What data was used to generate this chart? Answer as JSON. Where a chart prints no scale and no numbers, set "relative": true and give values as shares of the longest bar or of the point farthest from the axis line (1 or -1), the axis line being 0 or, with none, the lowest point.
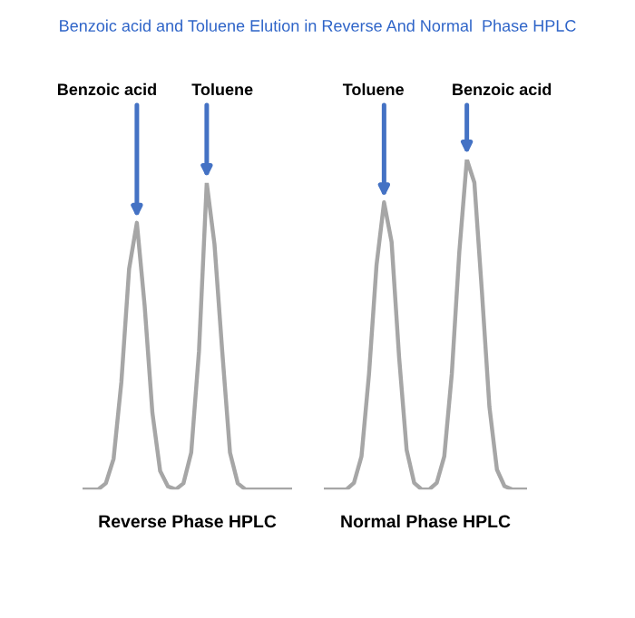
{
  "chart_data": [
    {
      "type": "line",
      "title": "Benzoic acid and Toluene Elution in Reverse And Normal  Phase HPLC",
      "xlabel": "Reverse Phase HPLC",
      "relative": true,
      "tick_labels": false,
      "legend": false,
      "categories": [
        null,
        null,
        null,
        null,
        null,
        null,
        null,
        null,
        null,
        null,
        null,
        null,
        null,
        null,
        null,
        null,
        null,
        null,
        null,
        null,
        null,
        null,
        null,
        null,
        null,
        null,
        null,
        null
      ],
      "series": [
        {
          "color": "#a6a6a6",
          "values": [
            0,
            0,
            0,
            0.02,
            0.1,
            0.35,
            0.72,
            0.87,
            0.6,
            0.25,
            0.06,
            0.01,
            0,
            0.02,
            0.12,
            0.45,
            1,
            0.8,
            0.45,
            0.12,
            0.02,
            0,
            0,
            0,
            0,
            0,
            0,
            0
          ]
        }
      ],
      "annotations": [
        "Benzoic acid",
        "Toluene"
      ]
    },
    {
      "type": "line",
      "xlabel": "Normal Phase HPLC",
      "relative": true,
      "tick_labels": false,
      "legend": false,
      "categories": [
        null,
        null,
        null,
        null,
        null,
        null,
        null,
        null,
        null,
        null,
        null,
        null,
        null,
        null,
        null,
        null,
        null,
        null,
        null,
        null,
        null,
        null,
        null,
        null,
        null,
        null,
        null,
        null
      ],
      "series": [
        {
          "color": "#a6a6a6",
          "values": [
            0,
            0,
            0,
            0,
            0.02,
            0.1,
            0.35,
            0.68,
            0.87,
            0.75,
            0.4,
            0.12,
            0.02,
            0,
            0,
            0.02,
            0.1,
            0.35,
            0.72,
            1,
            0.93,
            0.6,
            0.25,
            0.06,
            0.01,
            0,
            0,
            0
          ]
        }
      ],
      "annotations": [
        "Toluene",
        "Benzoic acid"
      ]
    }
  ]
}
